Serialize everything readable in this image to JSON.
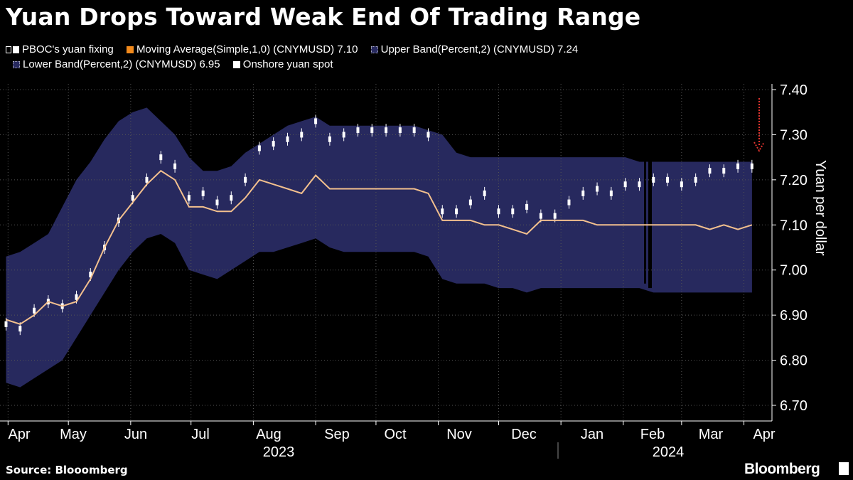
{
  "title": "Yuan Drops Toward Weak End Of Trading Range",
  "legend": [
    {
      "label": "PBOC's yuan fixing",
      "color": "#ffffff",
      "marker": "candle-icon"
    },
    {
      "label": "Moving Average(Simple,1,0) (CNYMUSD) 7.10",
      "color": "#f28a1c",
      "marker": "square"
    },
    {
      "label": "Upper Band(Percent,2) (CNYMUSD) 7.24",
      "color": "#27295e",
      "marker": "dotted-square"
    },
    {
      "label": "Lower Band(Percent,2) (CNYMUSD) 6.95",
      "color": "#27295e",
      "marker": "dotted-square"
    },
    {
      "label": "Onshore yuan spot",
      "color": "#ffffff",
      "marker": "square"
    }
  ],
  "source": "Source: Blooomberg",
  "brand": "Bloomberg",
  "colors": {
    "background": "#000000",
    "band": "#27295e",
    "moving_average": "#f3c08e",
    "fixing": "#ffffff",
    "arrow": "#e0342f",
    "grid": "#555555"
  },
  "chart_data": {
    "type": "line",
    "ylabel": "Yuan per dollar",
    "ylim": [
      6.65,
      7.42
    ],
    "yticks": [
      6.7,
      6.8,
      6.9,
      7.0,
      7.1,
      7.2,
      7.3,
      7.4
    ],
    "y_axis_side": "right",
    "grid": "dotted",
    "xticks": [
      "Apr",
      "May",
      "Jun",
      "Jul",
      "Aug",
      "Sep",
      "Oct",
      "Nov",
      "Dec",
      "Jan",
      "Feb",
      "Mar",
      "Apr"
    ],
    "year_labels": [
      "2023",
      "2024"
    ],
    "dates": [
      "2023-03-31",
      "2023-04-07",
      "2023-04-14",
      "2023-04-21",
      "2023-04-28",
      "2023-05-05",
      "2023-05-12",
      "2023-05-19",
      "2023-05-26",
      "2023-06-02",
      "2023-06-09",
      "2023-06-16",
      "2023-06-23",
      "2023-06-30",
      "2023-07-07",
      "2023-07-14",
      "2023-07-21",
      "2023-07-28",
      "2023-08-04",
      "2023-08-11",
      "2023-08-18",
      "2023-08-25",
      "2023-09-01",
      "2023-09-08",
      "2023-09-15",
      "2023-09-22",
      "2023-09-29",
      "2023-10-06",
      "2023-10-13",
      "2023-10-20",
      "2023-10-27",
      "2023-11-03",
      "2023-11-10",
      "2023-11-17",
      "2023-11-24",
      "2023-12-01",
      "2023-12-08",
      "2023-12-15",
      "2023-12-22",
      "2023-12-29",
      "2024-01-05",
      "2024-01-12",
      "2024-01-19",
      "2024-01-26",
      "2024-02-02",
      "2024-02-09",
      "2024-02-16",
      "2024-02-23",
      "2024-03-01",
      "2024-03-08",
      "2024-03-15",
      "2024-03-22",
      "2024-03-29",
      "2024-04-05"
    ],
    "series": [
      {
        "name": "Upper Band(Percent,2) (CNYMUSD) 7.24",
        "values": [
          7.03,
          7.04,
          7.06,
          7.08,
          7.14,
          7.2,
          7.24,
          7.29,
          7.33,
          7.35,
          7.36,
          7.33,
          7.3,
          7.25,
          7.22,
          7.22,
          7.23,
          7.26,
          7.28,
          7.3,
          7.32,
          7.33,
          7.34,
          7.32,
          7.32,
          7.32,
          7.32,
          7.32,
          7.32,
          7.32,
          7.31,
          7.3,
          7.26,
          7.25,
          7.25,
          7.25,
          7.25,
          7.25,
          7.25,
          7.25,
          7.25,
          7.25,
          7.25,
          7.25,
          7.25,
          7.24,
          7.24,
          7.24,
          7.24,
          7.24,
          7.24,
          7.24,
          7.24,
          7.24
        ]
      },
      {
        "name": "Moving Average(Simple,1,0) (CNYMUSD) 7.10",
        "values": [
          6.89,
          6.88,
          6.9,
          6.93,
          6.92,
          6.93,
          6.98,
          7.05,
          7.11,
          7.15,
          7.19,
          7.22,
          7.2,
          7.14,
          7.14,
          7.13,
          7.13,
          7.16,
          7.2,
          7.19,
          7.18,
          7.17,
          7.21,
          7.18,
          7.18,
          7.18,
          7.18,
          7.18,
          7.18,
          7.18,
          7.17,
          7.11,
          7.11,
          7.11,
          7.1,
          7.1,
          7.09,
          7.08,
          7.11,
          7.11,
          7.11,
          7.11,
          7.1,
          7.1,
          7.1,
          7.1,
          7.1,
          7.1,
          7.1,
          7.1,
          7.09,
          7.1,
          7.09,
          7.1
        ]
      },
      {
        "name": "Lower Band(Percent,2) (CNYMUSD) 6.95",
        "values": [
          6.75,
          6.74,
          6.76,
          6.78,
          6.8,
          6.85,
          6.9,
          6.95,
          7.0,
          7.04,
          7.07,
          7.08,
          7.06,
          7.0,
          6.99,
          6.98,
          7.0,
          7.02,
          7.04,
          7.04,
          7.05,
          7.06,
          7.07,
          7.05,
          7.04,
          7.04,
          7.04,
          7.04,
          7.04,
          7.04,
          7.03,
          6.98,
          6.97,
          6.97,
          6.97,
          6.96,
          6.96,
          6.95,
          6.96,
          6.96,
          6.96,
          6.96,
          6.96,
          6.96,
          6.96,
          6.96,
          6.95,
          6.95,
          6.95,
          6.95,
          6.95,
          6.95,
          6.95,
          6.95
        ]
      },
      {
        "name": "PBOC's yuan fixing",
        "values": [
          6.88,
          6.87,
          6.91,
          6.93,
          6.92,
          6.94,
          6.99,
          7.05,
          7.11,
          7.16,
          7.2,
          7.25,
          7.23,
          7.16,
          7.17,
          7.15,
          7.16,
          7.2,
          7.27,
          7.28,
          7.29,
          7.3,
          7.33,
          7.29,
          7.3,
          7.31,
          7.31,
          7.31,
          7.31,
          7.31,
          7.3,
          7.13,
          7.13,
          7.15,
          7.17,
          7.13,
          7.13,
          7.14,
          7.12,
          7.12,
          7.15,
          7.17,
          7.18,
          7.17,
          7.19,
          7.19,
          7.2,
          7.2,
          7.19,
          7.2,
          7.22,
          7.22,
          7.23,
          7.23
        ]
      }
    ]
  }
}
